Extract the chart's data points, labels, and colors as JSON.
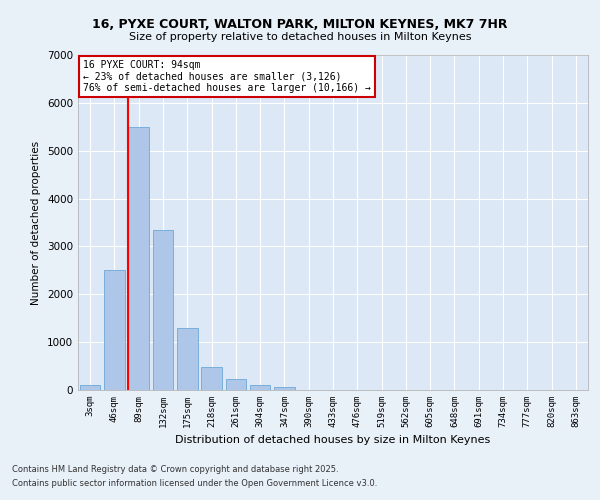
{
  "title1": "16, PYXE COURT, WALTON PARK, MILTON KEYNES, MK7 7HR",
  "title2": "Size of property relative to detached houses in Milton Keynes",
  "xlabel": "Distribution of detached houses by size in Milton Keynes",
  "ylabel": "Number of detached properties",
  "bar_color": "#aec6e8",
  "bar_edge_color": "#5a9fd4",
  "categories": [
    "3sqm",
    "46sqm",
    "89sqm",
    "132sqm",
    "175sqm",
    "218sqm",
    "261sqm",
    "304sqm",
    "347sqm",
    "390sqm",
    "433sqm",
    "476sqm",
    "519sqm",
    "562sqm",
    "605sqm",
    "648sqm",
    "691sqm",
    "734sqm",
    "777sqm",
    "820sqm",
    "863sqm"
  ],
  "values": [
    100,
    2500,
    5500,
    3350,
    1300,
    480,
    220,
    100,
    60,
    0,
    0,
    0,
    0,
    0,
    0,
    0,
    0,
    0,
    0,
    0,
    0
  ],
  "ylim": [
    0,
    7000
  ],
  "yticks": [
    0,
    1000,
    2000,
    3000,
    4000,
    5000,
    6000,
    7000
  ],
  "red_line_index": 2,
  "annotation_title": "16 PYXE COURT: 94sqm",
  "annotation_line2": "← 23% of detached houses are smaller (3,126)",
  "annotation_line3": "76% of semi-detached houses are larger (10,166) →",
  "annotation_box_color": "#ffffff",
  "annotation_box_edge": "#cc0000",
  "background_color": "#e8f0f8",
  "plot_bg_color": "#dce8f5",
  "grid_color": "#ffffff",
  "footer1": "Contains HM Land Registry data © Crown copyright and database right 2025.",
  "footer2": "Contains public sector information licensed under the Open Government Licence v3.0."
}
